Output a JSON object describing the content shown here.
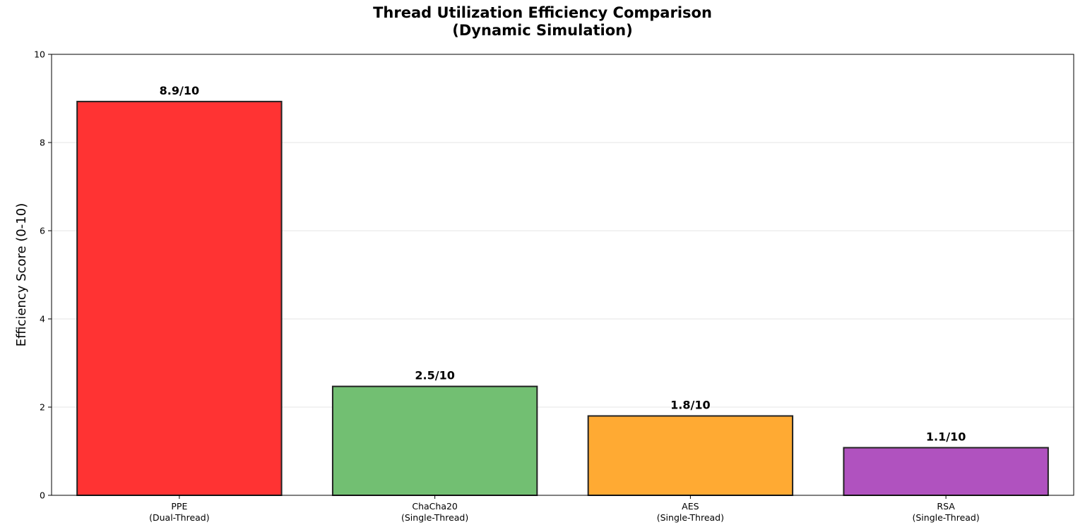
{
  "chart_data": {
    "type": "bar",
    "title": "Thread Utilization Efficiency Comparison\n(Dynamic Simulation)",
    "xlabel": "",
    "ylabel": "Efficiency Score (0-10)",
    "ylim": [
      0,
      10
    ],
    "yticks": [
      0,
      2,
      4,
      6,
      8,
      10
    ],
    "grid": "horizontal",
    "categories": [
      "PPE\n(Dual-Thread)",
      "ChaCha20\n(Single-Thread)",
      "AES\n(Single-Thread)",
      "RSA\n(Single-Thread)"
    ],
    "values": [
      8.93,
      2.47,
      1.8,
      1.08
    ],
    "data_labels": [
      "8.9/10",
      "2.5/10",
      "1.8/10",
      "1.1/10"
    ],
    "colors": [
      "#ff3333",
      "#72bf72",
      "#ffaa33",
      "#b052bf"
    ],
    "edge_color": "#222222"
  }
}
